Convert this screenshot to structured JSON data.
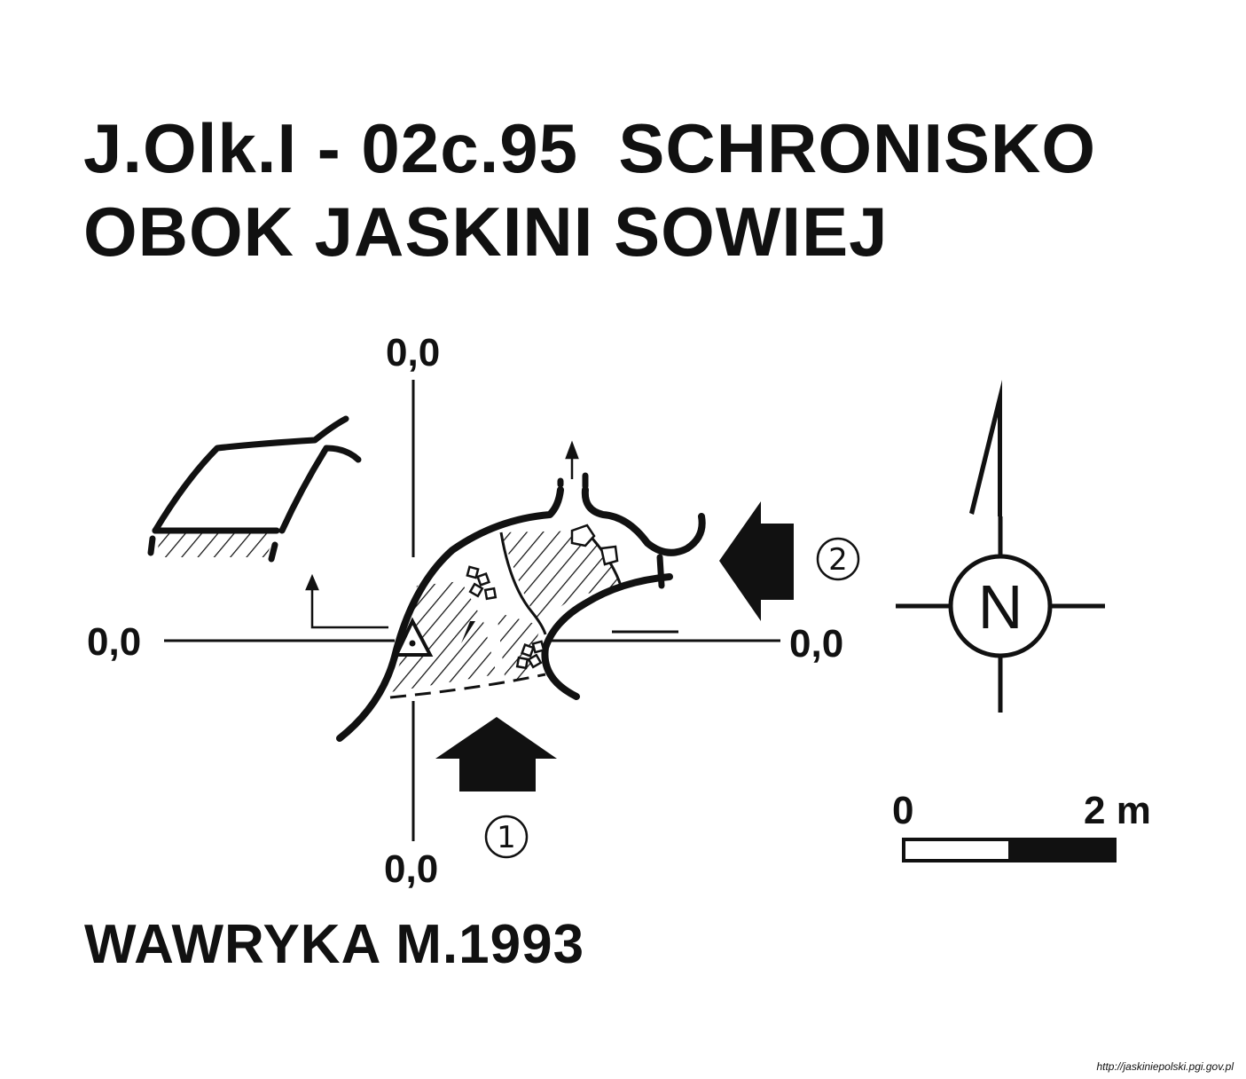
{
  "title": {
    "line1": "J.Olk.I - 02c.95  SCHRONISKO",
    "line2": "OBOK JASKINI SOWIEJ"
  },
  "reference_points": {
    "top": "0,0",
    "left": "0,0",
    "right": "0,0",
    "bottom": "0,0"
  },
  "entrances": {
    "first": "1",
    "second": "2"
  },
  "north_arrow": {
    "label": "N"
  },
  "scale_bar": {
    "start_label": "0",
    "end_label": "2 m"
  },
  "author": "WAWRYKA M.1993",
  "source": "http://jaskiniepolski.pgi.gov.pl",
  "colors": {
    "ink": "#111111",
    "background": "#ffffff"
  }
}
